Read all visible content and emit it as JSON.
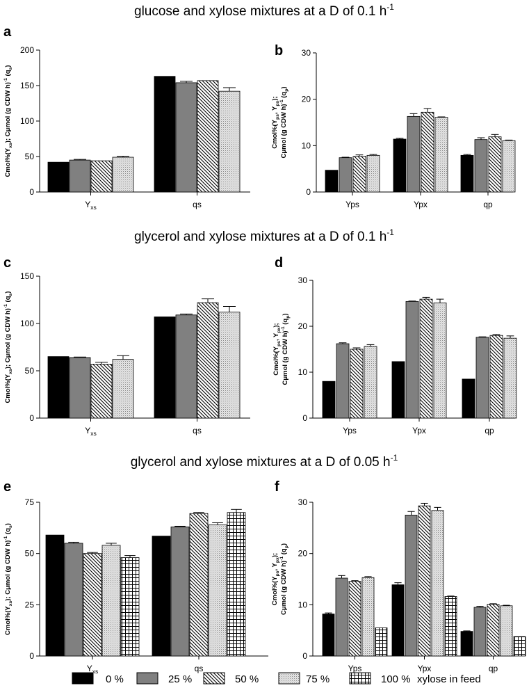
{
  "section_titles": [
    {
      "text": "glucose and xylose mixtures at a D of 0.1 h",
      "sup": "-1"
    },
    {
      "text": "glycerol and xylose mixtures at a D of 0.1 h",
      "sup": "-1"
    },
    {
      "text": "glycerol and xylose mixtures at a D of 0.05 h",
      "sup": "-1"
    }
  ],
  "legend": {
    "items": [
      {
        "label": "0 %",
        "pattern": "solid-black"
      },
      {
        "label": "25 %",
        "pattern": "solid-gray"
      },
      {
        "label": "50 %",
        "pattern": "diagonal-hatch"
      },
      {
        "label": "75 %",
        "pattern": "fine-dots"
      },
      {
        "label": "100 %",
        "pattern": "grid"
      }
    ],
    "suffix": "xylose in feed"
  },
  "colors": {
    "black": "#000000",
    "gray": "#808080",
    "light": "#d4d4d4"
  },
  "chart_data": [
    {
      "panel": "a",
      "type": "bar",
      "categories": [
        "Y_xs",
        "qs"
      ],
      "ylim": [
        0,
        200
      ],
      "yticks": [
        0,
        50,
        100,
        150,
        200
      ],
      "ylabel_lines": [
        "Cmol%(Y_xs); Cμmol (g CDW h)^-1 (q_s)"
      ],
      "series": [
        {
          "name": "0 %",
          "values": [
            42,
            163
          ],
          "err": [
            0,
            0
          ]
        },
        {
          "name": "25 %",
          "values": [
            45,
            154
          ],
          "err": [
            1,
            2
          ]
        },
        {
          "name": "50 %",
          "values": [
            44,
            157
          ],
          "err": [
            0,
            0
          ]
        },
        {
          "name": "75 %",
          "values": [
            49,
            142
          ],
          "err": [
            1.5,
            5
          ]
        }
      ]
    },
    {
      "panel": "b",
      "type": "bar",
      "categories": [
        "Yps",
        "Ypx",
        "qp"
      ],
      "ylim": [
        0,
        30
      ],
      "yticks": [
        0,
        10,
        20,
        30
      ],
      "ylabel_lines": [
        "Cmol%(Y_ps, Y_px);",
        "Cμmol (g CDW h)^-1 (q_p)"
      ],
      "series": [
        {
          "name": "0 %",
          "values": [
            4.7,
            11.4,
            7.9
          ],
          "err": [
            0,
            0.2,
            0.2
          ]
        },
        {
          "name": "25 %",
          "values": [
            7.4,
            16.3,
            11.3
          ],
          "err": [
            0.1,
            0.6,
            0.4
          ]
        },
        {
          "name": "50 %",
          "values": [
            7.7,
            17.2,
            11.9
          ],
          "err": [
            0.3,
            0.8,
            0.5
          ]
        },
        {
          "name": "75 %",
          "values": [
            7.9,
            16.1,
            11.1
          ],
          "err": [
            0.2,
            0.1,
            0.1
          ]
        }
      ]
    },
    {
      "panel": "c",
      "type": "bar",
      "categories": [
        "Y_xs",
        "qs"
      ],
      "ylim": [
        0,
        150
      ],
      "yticks": [
        0,
        50,
        100,
        150
      ],
      "ylabel_lines": [
        "Cmol%(Y_xs); Cμmol (g CDW h)^-1 (q_s)"
      ],
      "series": [
        {
          "name": "0 %",
          "values": [
            65,
            107
          ],
          "err": [
            0,
            0
          ]
        },
        {
          "name": "25 %",
          "values": [
            64,
            109
          ],
          "err": [
            0.5,
            1
          ]
        },
        {
          "name": "50 %",
          "values": [
            57,
            122
          ],
          "err": [
            2,
            4
          ]
        },
        {
          "name": "75 %",
          "values": [
            62,
            112
          ],
          "err": [
            4,
            6
          ]
        }
      ]
    },
    {
      "panel": "d",
      "type": "bar",
      "categories": [
        "Yps",
        "Ypx",
        "qp"
      ],
      "ylim": [
        0,
        30
      ],
      "yticks": [
        0,
        10,
        20,
        30
      ],
      "ylabel_lines": [
        "Cmol%(Y_ps, Y_px);",
        "Cμmol (g CDW h)^-1 (q_p)"
      ],
      "series": [
        {
          "name": "0 %",
          "values": [
            8.0,
            12.3,
            8.5
          ],
          "err": [
            0,
            0,
            0
          ]
        },
        {
          "name": "25 %",
          "values": [
            16.2,
            25.4,
            17.6
          ],
          "err": [
            0.2,
            0.1,
            0.1
          ]
        },
        {
          "name": "50 %",
          "values": [
            15.0,
            25.9,
            18.0
          ],
          "err": [
            0.3,
            0.4,
            0.2
          ]
        },
        {
          "name": "75 %",
          "values": [
            15.6,
            25.1,
            17.4
          ],
          "err": [
            0.4,
            0.8,
            0.5
          ]
        }
      ]
    },
    {
      "panel": "e",
      "type": "bar",
      "categories": [
        "Y_xs",
        "qs"
      ],
      "ylim": [
        0,
        75
      ],
      "yticks": [
        0,
        25,
        50,
        75
      ],
      "ylabel_lines": [
        "Cmol%(Y_xs); Cμmol (g CDW h)^-1 (q_s)"
      ],
      "series": [
        {
          "name": "0 %",
          "values": [
            59,
            58.5
          ],
          "err": [
            0,
            0
          ]
        },
        {
          "name": "25 %",
          "values": [
            55,
            63
          ],
          "err": [
            0.5,
            0.3
          ]
        },
        {
          "name": "50 %",
          "values": [
            50,
            69.5
          ],
          "err": [
            0.5,
            0.5
          ]
        },
        {
          "name": "75 %",
          "values": [
            54,
            64
          ],
          "err": [
            1,
            1
          ]
        },
        {
          "name": "100 %",
          "values": [
            48,
            70
          ],
          "err": [
            1,
            1.5
          ]
        }
      ]
    },
    {
      "panel": "f",
      "type": "bar",
      "categories": [
        "Yps",
        "Ypx",
        "qp"
      ],
      "ylim": [
        0,
        30
      ],
      "yticks": [
        0,
        10,
        20,
        30
      ],
      "ylabel_lines": [
        "Cmol%(Y_ps, Y_px);",
        "Cμmol (g CDW h)^-1 (q_p)"
      ],
      "series": [
        {
          "name": "0 %",
          "values": [
            8.2,
            13.9,
            4.8
          ],
          "err": [
            0.2,
            0.4,
            0.1
          ]
        },
        {
          "name": "25 %",
          "values": [
            15.2,
            27.5,
            9.5
          ],
          "err": [
            0.5,
            0.7,
            0.2
          ]
        },
        {
          "name": "50 %",
          "values": [
            14.6,
            29.3,
            10.1
          ],
          "err": [
            0.1,
            0.5,
            0.1
          ]
        },
        {
          "name": "75 %",
          "values": [
            15.3,
            28.4,
            9.8
          ],
          "err": [
            0.2,
            0.6,
            0.1
          ]
        },
        {
          "name": "100 %",
          "values": [
            5.5,
            11.6,
            3.8
          ],
          "err": [
            0,
            0.1,
            0
          ]
        }
      ]
    }
  ]
}
